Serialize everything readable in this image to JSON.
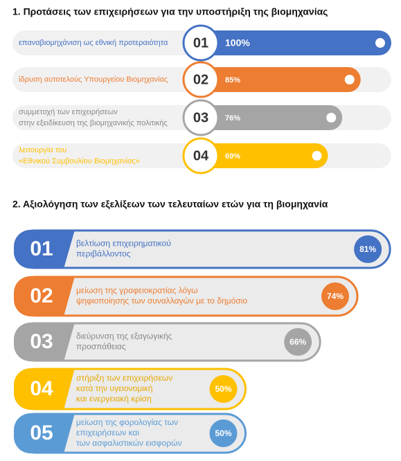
{
  "chart_data": [
    {
      "type": "pill",
      "title": "1.   Προτάσεις των επιχειρήσεων για την υποστήριξη της βιομηχανίας",
      "numbers": [
        "01",
        "02",
        "03",
        "04"
      ],
      "categories": [
        [
          "επαναβιομηχάνιση  ως  εθνική προτεραιότητα"
        ],
        [
          "ίδρυση αυτοτελούς Υπουργείου Βιομηχανίας"
        ],
        [
          "συμμετοχή των επιχειρήσεων",
          "στην εξειδίκευση της βιομηχανικής πολιτικής"
        ],
        [
          "λειτουργία του",
          "«Εθνικού Συμβουλίου Βιομηχανίας»"
        ]
      ],
      "values": [
        100,
        85,
        76,
        69
      ],
      "value_labels": [
        "100%",
        "85%",
        "76%",
        "69%"
      ],
      "colors": [
        "#4472c4",
        "#ed7d31",
        "#a5a5a5",
        "#ffc000"
      ],
      "xlim": [
        0,
        100
      ]
    },
    {
      "type": "banner",
      "title": "2.   Αξιολόγηση των εξελίξεων των τελευταίων ετών για τη βιομηχανία",
      "numbers": [
        "01",
        "02",
        "03",
        "04",
        "05"
      ],
      "categories": [
        [
          "βελτίωση επιχειρηματικού",
          "περιβάλλοντος"
        ],
        [
          "μείωση της γραφειοκρατίας λόγω",
          "ψηφιοποίησης των συναλλαγών με το δημόσιο"
        ],
        [
          "διεύρυνση της εξαγωγικής",
          "προσπάθειας"
        ],
        [
          "στήριξη των επιχειρήσεων",
          "κατά την υγειονομική",
          "και ενεργειακή κρίση"
        ],
        [
          "μείωση της φορολογίας των",
          "επιχειρήσεων και",
          "των ασφαλιστικών εισφορών"
        ]
      ],
      "values": [
        81,
        74,
        66,
        50,
        50
      ],
      "value_labels": [
        "81%",
        "74%",
        "66%",
        "50%",
        "50%"
      ],
      "colors": [
        "#4472c4",
        "#ed7d31",
        "#a5a5a5",
        "#ffc000",
        "#5b9bd5"
      ],
      "xlim": [
        0,
        100
      ]
    }
  ]
}
